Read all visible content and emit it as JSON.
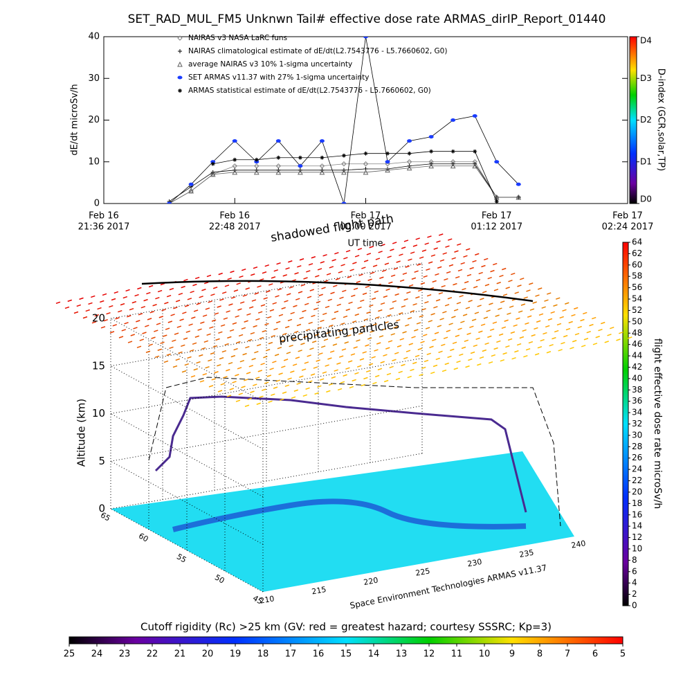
{
  "title": "SET_RAD_MUL_FM5 Unknwn Tail#  effective dose rate ARMAS_dirIP_Report_01440",
  "chart_data": [
    {
      "type": "line",
      "ylabel": "dE/dt microSv/h",
      "xlabel": "UT time",
      "ylim": [
        0,
        40
      ],
      "yticks": [
        0,
        10,
        20,
        30,
        40
      ],
      "xlim": [
        "2017-02-16 21:36",
        "2017-02-17 02:24"
      ],
      "xticks": [
        {
          "value": "2017-02-16 21:36",
          "label": [
            "Feb 16",
            "21:36 2017"
          ]
        },
        {
          "value": "2017-02-16 22:48",
          "label": [
            "Feb 16",
            "22:48 2017"
          ]
        },
        {
          "value": "2017-02-17 00:00",
          "label": [
            "Feb 17",
            "00:00 2017"
          ]
        },
        {
          "value": "2017-02-17 01:12",
          "label": [
            "Feb 17",
            "01:12 2017"
          ]
        },
        {
          "value": "2017-02-17 02:24",
          "label": [
            "Feb 17",
            "02:24 2017"
          ]
        }
      ],
      "x": [
        "2017-02-16 22:12",
        "2017-02-16 22:24",
        "2017-02-16 22:36",
        "2017-02-16 22:48",
        "2017-02-16 23:00",
        "2017-02-16 23:12",
        "2017-02-16 23:24",
        "2017-02-16 23:36",
        "2017-02-16 23:48",
        "2017-02-17 00:00",
        "2017-02-17 00:12",
        "2017-02-17 00:24",
        "2017-02-17 00:36",
        "2017-02-17 00:48",
        "2017-02-17 01:00",
        "2017-02-17 01:12",
        "2017-02-17 01:24",
        "2017-02-17 01:36"
      ],
      "series": [
        {
          "name": "NAIRAS v3 NASA LaRC funs",
          "color": "#808080",
          "marker": "diamond",
          "values": [
            0,
            3,
            7,
            9,
            9,
            9,
            9,
            9,
            9.5,
            9.5,
            9.5,
            10,
            10,
            10,
            10,
            1.5,
            1.5,
            null
          ]
        },
        {
          "name": "NAIRAS climatological estimate of dE/dt(L2.7543776 - L5.7660602, G0)",
          "color": "#000000",
          "marker": "plus",
          "values": [
            0.5,
            4,
            7.5,
            8,
            8,
            8,
            8,
            8,
            8,
            8.3,
            8.3,
            9,
            9.5,
            9.5,
            9.5,
            1.5,
            1.5,
            null
          ]
        },
        {
          "name": "average NAIRAS v3 10% 1-sigma uncertainty",
          "color": "#606060",
          "marker": "triangle",
          "values": [
            0,
            3,
            7,
            7.5,
            7.5,
            7.5,
            7.5,
            7.5,
            7.5,
            7.5,
            8,
            8.5,
            9,
            9,
            9,
            1.5,
            1.5,
            null
          ]
        },
        {
          "name": "SET ARMAS v11.37 with 27% 1-sigma uncertainty",
          "color": "#1a3cff",
          "marker": "circle",
          "values": [
            0,
            4.6,
            10,
            15,
            10,
            15,
            9,
            15,
            0,
            40,
            10,
            15,
            16,
            20,
            21,
            10,
            4.6,
            null
          ]
        },
        {
          "name": "ARMAS statistical estimate of dE/dt(L2.7543776 - L5.7660602, G0)",
          "color": "#000000",
          "marker": "asterisk",
          "values": [
            null,
            null,
            9.5,
            10.5,
            10.5,
            11,
            11,
            11,
            11.5,
            12,
            12,
            12,
            12.5,
            12.5,
            12.5,
            0.5,
            null,
            null
          ]
        }
      ],
      "colorbar": {
        "label": "D-index (GCR,solar,TP)",
        "lim": [
          0,
          4
        ],
        "ticks": [
          {
            "value": 0,
            "label": "D0"
          },
          {
            "value": 1,
            "label": "D1"
          },
          {
            "value": 2,
            "label": "D2"
          },
          {
            "value": 3,
            "label": "D3"
          },
          {
            "value": 4,
            "label": "D4"
          }
        ]
      }
    },
    {
      "type": "surface3d",
      "zlabel": "Altitude (km)",
      "zlim": [
        0,
        20
      ],
      "zticks": [
        0,
        5,
        10,
        15,
        20
      ],
      "xlim": [
        210,
        240
      ],
      "xticks": [
        210,
        215,
        220,
        225,
        230,
        235,
        240
      ],
      "ylim": [
        45,
        65
      ],
      "yticks": [
        45,
        50,
        55,
        60,
        65
      ],
      "annotations": [
        "shadowed flight path",
        "precipitating particles",
        "Space Environment Technologies ARMAS v11.37"
      ],
      "colorbar": {
        "label": "flight effective dose rate microSv/h",
        "lim": [
          0,
          64
        ],
        "ticks": [
          0,
          2,
          4,
          6,
          8,
          10,
          12,
          14,
          16,
          18,
          20,
          22,
          24,
          26,
          28,
          30,
          32,
          34,
          36,
          38,
          40,
          42,
          44,
          46,
          48,
          50,
          52,
          54,
          56,
          58,
          60,
          62,
          64
        ]
      },
      "rc_colorbar": {
        "label": "Cutoff rigidity (Rc) >25 km (GV: red = greatest hazard; courtesy SSSRC; Kp=3)",
        "lim": [
          25,
          5
        ],
        "ticks": [
          25,
          24,
          23,
          22,
          21,
          20,
          19,
          18,
          17,
          16,
          15,
          14,
          13,
          12,
          11,
          10,
          9,
          8,
          7,
          6,
          5
        ]
      }
    }
  ]
}
